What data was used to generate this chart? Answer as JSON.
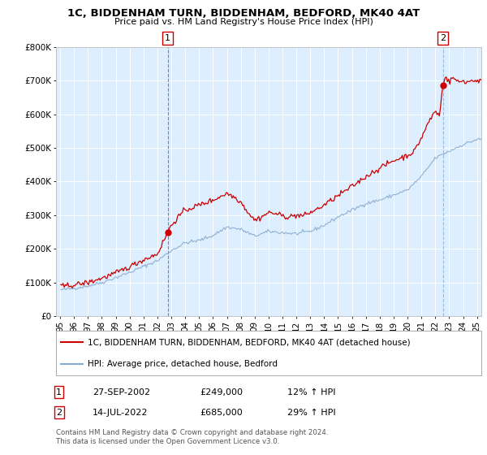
{
  "title": "1C, BIDDENHAM TURN, BIDDENHAM, BEDFORD, MK40 4AT",
  "subtitle": "Price paid vs. HM Land Registry's House Price Index (HPI)",
  "sale1_date": 2002.74,
  "sale1_price": 249000,
  "sale2_date": 2022.54,
  "sale2_price": 685000,
  "ylim": [
    0,
    800000
  ],
  "xlim": [
    1994.7,
    2025.3
  ],
  "ylabel_ticks": [
    0,
    100000,
    200000,
    300000,
    400000,
    500000,
    600000,
    700000,
    800000
  ],
  "ylabel_labels": [
    "£0",
    "£100K",
    "£200K",
    "£300K",
    "£400K",
    "£500K",
    "£600K",
    "£700K",
    "£800K"
  ],
  "xtick_years": [
    1995,
    1996,
    1997,
    1998,
    1999,
    2000,
    2001,
    2002,
    2003,
    2004,
    2005,
    2006,
    2007,
    2008,
    2009,
    2010,
    2011,
    2012,
    2013,
    2014,
    2015,
    2016,
    2017,
    2018,
    2019,
    2020,
    2021,
    2022,
    2023,
    2024,
    2025
  ],
  "xtick_labels": [
    "95",
    "96",
    "97",
    "98",
    "99",
    "00",
    "01",
    "02",
    "03",
    "04",
    "05",
    "06",
    "07",
    "08",
    "09",
    "10",
    "11",
    "12",
    "13",
    "14",
    "15",
    "16",
    "17",
    "18",
    "19",
    "20",
    "21",
    "22",
    "23",
    "24",
    "25"
  ],
  "fig_bg_color": "#ffffff",
  "plot_bg_color": "#ddeeff",
  "grid_color": "#ffffff",
  "red_color": "#cc0000",
  "blue_color": "#88aacc",
  "legend_label_red": "1C, BIDDENHAM TURN, BIDDENHAM, BEDFORD, MK40 4AT (detached house)",
  "legend_label_blue": "HPI: Average price, detached house, Bedford",
  "footer": "Contains HM Land Registry data © Crown copyright and database right 2024.\nThis data is licensed under the Open Government Licence v3.0."
}
